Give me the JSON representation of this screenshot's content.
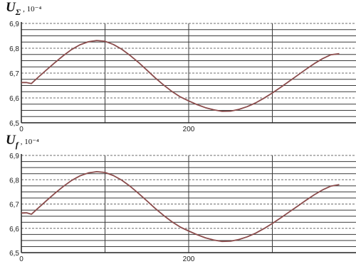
{
  "chart_data": [
    {
      "type": "line",
      "label_symbol": "U",
      "label_subscript": "Σ",
      "label_multiplier": ", 10⁻⁴",
      "xlim": [
        0,
        400
      ],
      "ylim": [
        6.5,
        6.9
      ],
      "y_tick_labels": [
        "6,9",
        "6,8",
        "6,7",
        "6,6",
        "6,5"
      ],
      "x_tick_labels": [
        "0",
        "200"
      ],
      "grid": true,
      "series": [
        {
          "x": [
            0,
            6,
            12,
            20,
            30,
            40,
            50,
            60,
            70,
            80,
            90,
            100,
            110,
            120,
            130,
            140,
            150,
            160,
            170,
            180,
            190,
            200,
            210,
            220,
            230,
            240,
            250,
            260,
            270,
            280,
            290,
            300,
            310,
            320,
            330,
            340,
            350,
            360,
            370,
            380
          ],
          "y": [
            6.662,
            6.662,
            6.658,
            6.683,
            6.713,
            6.742,
            6.77,
            6.795,
            6.814,
            6.826,
            6.831,
            6.828,
            6.815,
            6.796,
            6.771,
            6.743,
            6.712,
            6.681,
            6.652,
            6.626,
            6.604,
            6.588,
            6.573,
            6.561,
            6.552,
            6.546,
            6.547,
            6.554,
            6.565,
            6.58,
            6.599,
            6.62,
            6.643,
            6.667,
            6.691,
            6.715,
            6.738,
            6.758,
            6.774,
            6.778
          ]
        }
      ],
      "color": "#8b4c4c"
    },
    {
      "type": "line",
      "label_symbol": "U",
      "label_subscript": "f",
      "label_multiplier": ", 10⁻⁴",
      "xlim": [
        0,
        400
      ],
      "ylim": [
        6.5,
        6.9
      ],
      "y_tick_labels": [
        "6,9",
        "6,8",
        "6,7",
        "6,6",
        "6,5"
      ],
      "x_tick_labels": [
        "0",
        "200"
      ],
      "grid": true,
      "series": [
        {
          "x": [
            0,
            6,
            12,
            20,
            30,
            40,
            50,
            60,
            70,
            80,
            90,
            100,
            110,
            120,
            130,
            140,
            150,
            160,
            170,
            180,
            190,
            200,
            210,
            220,
            230,
            240,
            250,
            260,
            270,
            280,
            290,
            300,
            310,
            320,
            330,
            340,
            350,
            360,
            370,
            380
          ],
          "y": [
            6.663,
            6.664,
            6.658,
            6.683,
            6.714,
            6.744,
            6.772,
            6.797,
            6.816,
            6.828,
            6.833,
            6.83,
            6.817,
            6.798,
            6.773,
            6.744,
            6.713,
            6.682,
            6.653,
            6.627,
            6.605,
            6.589,
            6.574,
            6.561,
            6.552,
            6.546,
            6.547,
            6.554,
            6.565,
            6.58,
            6.599,
            6.62,
            6.643,
            6.667,
            6.691,
            6.715,
            6.738,
            6.758,
            6.774,
            6.78
          ]
        }
      ],
      "color": "#8b4c4c"
    }
  ]
}
